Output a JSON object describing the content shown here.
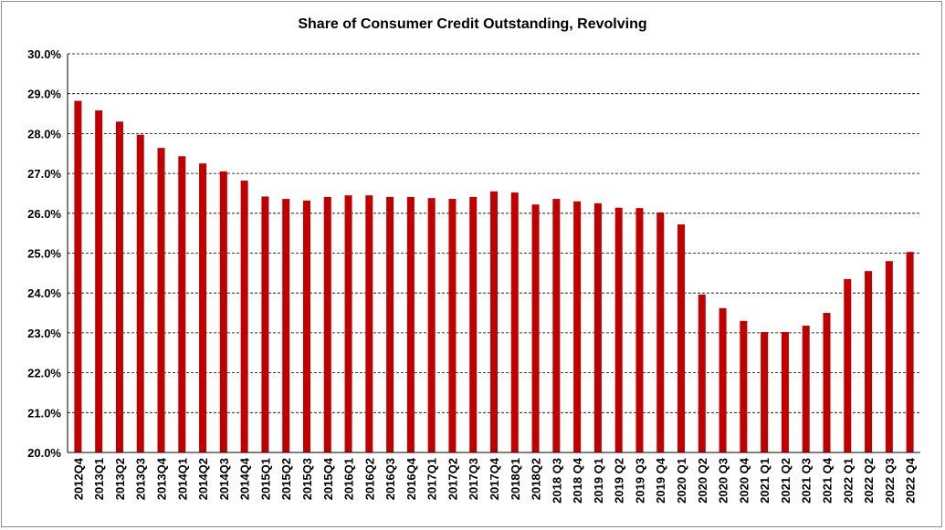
{
  "chart_data": {
    "type": "bar",
    "title": "Share of Consumer Credit Outstanding, Revolving",
    "xlabel": "",
    "ylabel": "",
    "ylim": [
      20.0,
      30.0
    ],
    "yticks": [
      "20.0%",
      "21.0%",
      "22.0%",
      "23.0%",
      "24.0%",
      "25.0%",
      "26.0%",
      "27.0%",
      "28.0%",
      "29.0%",
      "30.0%"
    ],
    "grid": "horizontal dashed",
    "bar_color": "#c00000",
    "categories": [
      "2012Q4",
      "2013Q1",
      "2013Q2",
      "2013Q3",
      "2013Q4",
      "2014Q1",
      "2014Q2",
      "2014Q3",
      "2014Q4",
      "2015Q1",
      "2015Q2",
      "2015Q3",
      "2015Q4",
      "2016Q1",
      "2016Q2",
      "2016Q3",
      "2016Q4",
      "2017Q1",
      "2017Q2",
      "2017Q3",
      "2017Q4",
      "2018Q1",
      "2018Q2",
      "2018 Q3",
      "2018 Q4",
      "2019 Q1",
      "2019 Q2",
      "2019 Q3",
      "2019 Q4",
      "2020 Q1",
      "2020 Q2",
      "2020 Q3",
      "2020 Q4",
      "2021 Q1",
      "2021 Q2",
      "2021 Q3",
      "2021 Q4",
      "2022 Q1",
      "2022 Q2",
      "2022 Q3",
      "2022 Q4"
    ],
    "values": [
      28.82,
      28.58,
      28.3,
      27.97,
      27.64,
      27.43,
      27.25,
      27.05,
      26.82,
      26.42,
      26.36,
      26.32,
      26.41,
      26.45,
      26.45,
      26.41,
      26.41,
      26.38,
      26.36,
      26.41,
      26.55,
      26.52,
      26.22,
      26.36,
      26.3,
      26.25,
      26.14,
      26.13,
      26.02,
      25.72,
      23.96,
      23.62,
      23.3,
      23.02,
      23.02,
      23.18,
      23.5,
      24.35,
      24.55,
      24.8,
      25.03
    ]
  }
}
